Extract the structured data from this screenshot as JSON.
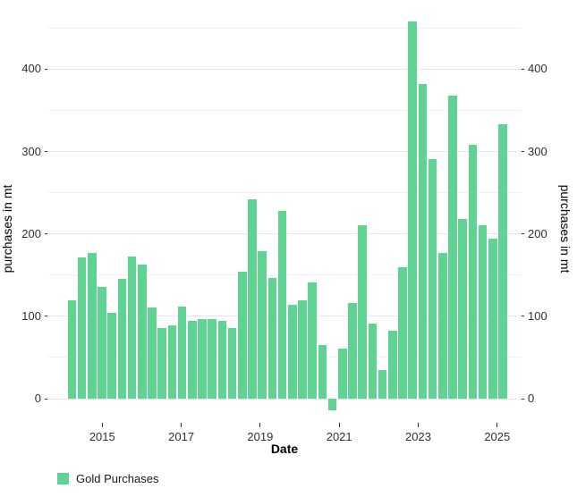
{
  "chart_data": {
    "type": "bar",
    "title": "",
    "xlabel": "Date",
    "ylabel_left": "purchases in mt",
    "ylabel_right": "purchases in mt",
    "legend": [
      {
        "label": "Gold Purchases",
        "color": "#5fd392"
      }
    ],
    "x_tick_labels": [
      "2015",
      "2017",
      "2019",
      "2021",
      "2023",
      "2025"
    ],
    "y_major_ticks": [
      0,
      100,
      200,
      300,
      400
    ],
    "y_minor_gridlines": [
      50,
      150,
      250,
      350,
      450
    ],
    "ylim": [
      -30,
      470
    ],
    "grid": "horizontal-only, light gray, white panel background",
    "legend_position": "bottom-left",
    "categories": [
      "2014 Q1",
      "2014 Q2",
      "2014 Q3",
      "2014 Q4",
      "2015 Q1",
      "2015 Q2",
      "2015 Q3",
      "2015 Q4",
      "2016 Q1",
      "2016 Q2",
      "2016 Q3",
      "2016 Q4",
      "2017 Q1",
      "2017 Q2",
      "2017 Q3",
      "2017 Q4",
      "2018 Q1",
      "2018 Q2",
      "2018 Q3",
      "2018 Q4",
      "2019 Q1",
      "2019 Q2",
      "2019 Q3",
      "2019 Q4",
      "2020 Q1",
      "2020 Q2",
      "2020 Q3",
      "2020 Q4",
      "2021 Q1",
      "2021 Q2",
      "2021 Q3",
      "2021 Q4",
      "2022 Q1",
      "2022 Q2",
      "2022 Q3",
      "2022 Q4",
      "2023 Q1",
      "2023 Q2",
      "2023 Q3",
      "2023 Q4",
      "2024 Q1",
      "2024 Q2",
      "2024 Q3",
      "2024 Q4"
    ],
    "values": [
      119,
      171,
      177,
      136,
      104,
      145,
      173,
      163,
      111,
      86,
      89,
      112,
      94,
      97,
      97,
      94,
      86,
      154,
      242,
      179,
      146,
      228,
      114,
      119,
      141,
      65,
      -14,
      61,
      116,
      211,
      91,
      35,
      83,
      159,
      458,
      382,
      291,
      177,
      368,
      218,
      308,
      211,
      194,
      333
    ]
  },
  "colors": {
    "bar": "#5fd392",
    "grid_major": "#e6e6e6",
    "grid_minor": "#f2f2f2",
    "axis_text": "#303030",
    "tick_mark": "#333333",
    "background": "#ffffff"
  }
}
